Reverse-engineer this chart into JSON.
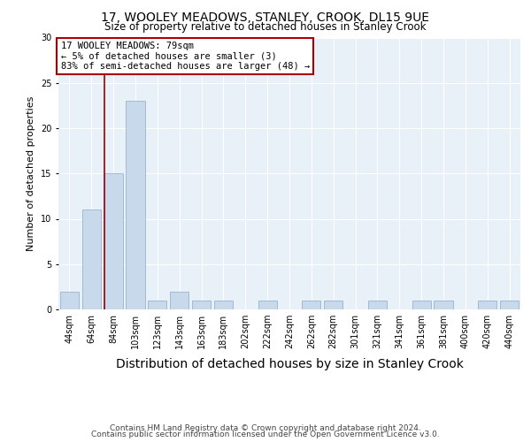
{
  "title": "17, WOOLEY MEADOWS, STANLEY, CROOK, DL15 9UE",
  "subtitle": "Size of property relative to detached houses in Stanley Crook",
  "xlabel": "Distribution of detached houses by size in Stanley Crook",
  "ylabel": "Number of detached properties",
  "categories": [
    "44sqm",
    "64sqm",
    "84sqm",
    "103sqm",
    "123sqm",
    "143sqm",
    "163sqm",
    "183sqm",
    "202sqm",
    "222sqm",
    "242sqm",
    "262sqm",
    "282sqm",
    "301sqm",
    "321sqm",
    "341sqm",
    "361sqm",
    "381sqm",
    "400sqm",
    "420sqm",
    "440sqm"
  ],
  "values": [
    2,
    11,
    15,
    23,
    1,
    2,
    1,
    1,
    0,
    1,
    0,
    1,
    1,
    0,
    1,
    0,
    1,
    1,
    0,
    1,
    1
  ],
  "bar_color": "#c8d9ec",
  "bar_edge_color": "#9ab4cc",
  "background_color": "#e8f0f8",
  "red_line_index": 2,
  "annotation_text": "17 WOOLEY MEADOWS: 79sqm\n← 5% of detached houses are smaller (3)\n83% of semi-detached houses are larger (48) →",
  "annotation_box_color": "#ffffff",
  "annotation_box_edge_color": "#aa0000",
  "footer_line1": "Contains HM Land Registry data © Crown copyright and database right 2024.",
  "footer_line2": "Contains public sector information licensed under the Open Government Licence v3.0.",
  "ylim": [
    0,
    30
  ],
  "yticks": [
    0,
    5,
    10,
    15,
    20,
    25,
    30
  ],
  "title_fontsize": 10,
  "subtitle_fontsize": 8.5,
  "xlabel_fontsize": 10,
  "ylabel_fontsize": 8,
  "tick_fontsize": 7,
  "annotation_fontsize": 7.5,
  "footer_fontsize": 6.5
}
